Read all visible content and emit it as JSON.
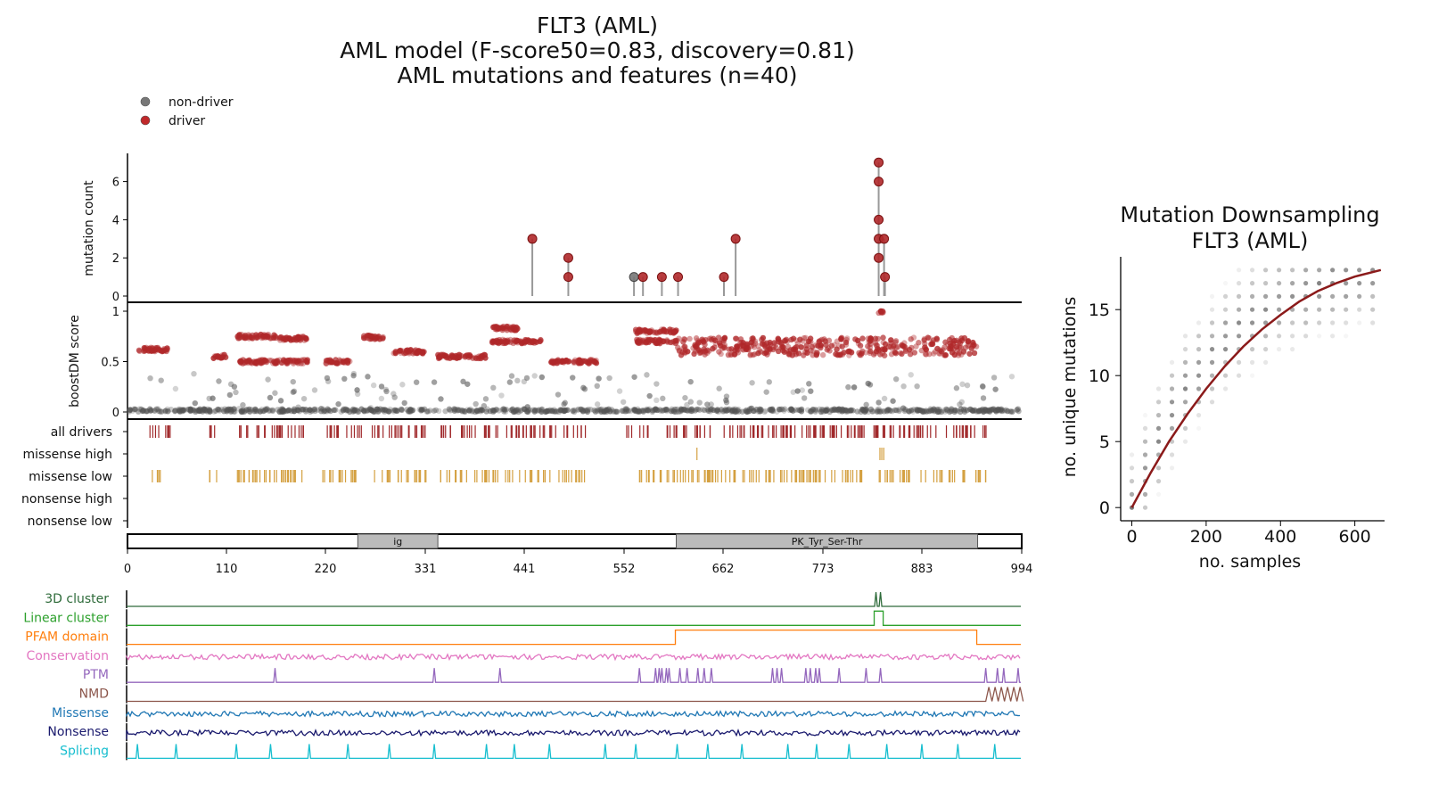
{
  "title": {
    "line1": "FLT3 (AML)",
    "line2": "AML model (F-score50=0.83, discovery=0.81)",
    "line3": "AML mutations and features (n=40)"
  },
  "legend": {
    "items": [
      {
        "label": "non-driver",
        "color": "#777777"
      },
      {
        "label": "driver",
        "color": "#c0282a"
      }
    ],
    "placement": "top-left"
  },
  "colors": {
    "driver": "#b0282a",
    "nondriver": "#555555",
    "missense_track": "#d4a040",
    "driver_track": "#a0282a",
    "downsampling_curve": "#8b1a1a"
  },
  "protein": {
    "length": 994,
    "x_ticks": [
      "0",
      "110",
      "220",
      "331",
      "441",
      "552",
      "662",
      "773",
      "883",
      "994"
    ],
    "domains": [
      {
        "label": "ig",
        "start": 256,
        "end": 345
      },
      {
        "label": "PK_Tyr_Ser-Thr",
        "start": 610,
        "end": 945
      }
    ]
  },
  "chart_data": [
    {
      "type": "scatter",
      "name": "needle-plot",
      "ylabel": "mutation count",
      "yticks": [
        "0",
        "2",
        "4",
        "6"
      ],
      "ylim": [
        0,
        7
      ],
      "mutations": [
        {
          "pos": 450,
          "count": 3,
          "driver": true
        },
        {
          "pos": 490,
          "count": 2,
          "driver": true
        },
        {
          "pos": 490,
          "count": 1,
          "driver": true
        },
        {
          "pos": 563,
          "count": 1,
          "driver": false
        },
        {
          "pos": 573,
          "count": 1,
          "driver": true
        },
        {
          "pos": 594,
          "count": 1,
          "driver": true
        },
        {
          "pos": 612,
          "count": 1,
          "driver": true
        },
        {
          "pos": 663,
          "count": 1,
          "driver": true
        },
        {
          "pos": 676,
          "count": 3,
          "driver": true
        },
        {
          "pos": 835,
          "count": 7,
          "driver": true
        },
        {
          "pos": 835,
          "count": 6,
          "driver": true
        },
        {
          "pos": 835,
          "count": 4,
          "driver": true
        },
        {
          "pos": 835,
          "count": 3,
          "driver": true
        },
        {
          "pos": 835,
          "count": 2,
          "driver": true
        },
        {
          "pos": 841,
          "count": 3,
          "driver": true
        },
        {
          "pos": 842,
          "count": 1,
          "driver": true
        }
      ]
    },
    {
      "type": "scatter",
      "name": "boostdm-scores",
      "ylabel": "boostDM score",
      "yticks": [
        "0",
        "0.5",
        "1"
      ],
      "ylim": [
        0,
        1
      ],
      "driver_bands": [
        {
          "start": 12,
          "end": 45,
          "y": 0.62
        },
        {
          "start": 95,
          "end": 110,
          "y": 0.55
        },
        {
          "start": 122,
          "end": 165,
          "y": 0.75
        },
        {
          "start": 165,
          "end": 200,
          "y": 0.73
        },
        {
          "start": 125,
          "end": 200,
          "y": 0.5
        },
        {
          "start": 220,
          "end": 248,
          "y": 0.5
        },
        {
          "start": 262,
          "end": 285,
          "y": 0.74
        },
        {
          "start": 295,
          "end": 330,
          "y": 0.6
        },
        {
          "start": 345,
          "end": 398,
          "y": 0.55
        },
        {
          "start": 405,
          "end": 435,
          "y": 0.83
        },
        {
          "start": 405,
          "end": 460,
          "y": 0.7
        },
        {
          "start": 470,
          "end": 522,
          "y": 0.5
        },
        {
          "start": 565,
          "end": 610,
          "y": 0.8
        },
        {
          "start": 565,
          "end": 610,
          "y": 0.7
        },
        {
          "start": 610,
          "end": 945,
          "y": 0.65
        },
        {
          "start": 835,
          "end": 842,
          "y": 1.0
        }
      ]
    },
    {
      "type": "table",
      "name": "driver-tracks",
      "rows": [
        "all drivers",
        "missense high",
        "missense low",
        "nonsense high",
        "nonsense low"
      ],
      "segments": {
        "all drivers": [
          [
            24,
            52
          ],
          [
            89,
            100
          ],
          [
            122,
            198
          ],
          [
            214,
            262
          ],
          [
            270,
            333
          ],
          [
            345,
            412
          ],
          [
            420,
            510
          ],
          [
            553,
            955
          ]
        ],
        "missense high": [
          [
            633,
            634
          ],
          [
            834,
            842
          ]
        ],
        "missense low": [
          [
            24,
            40
          ],
          [
            89,
            100
          ],
          [
            122,
            198
          ],
          [
            214,
            262
          ],
          [
            270,
            333
          ],
          [
            345,
            412
          ],
          [
            420,
            510
          ],
          [
            568,
            955
          ]
        ],
        "nonsense high": [],
        "nonsense low": []
      }
    },
    {
      "type": "line",
      "name": "feature-tracks",
      "tracks": [
        {
          "label": "3D cluster",
          "color": "#2e6b3a",
          "kind": "peaks",
          "peaks": [
            833,
            838
          ]
        },
        {
          "label": "Linear cluster",
          "color": "#2ca02c",
          "kind": "box",
          "start": 831,
          "end": 841
        },
        {
          "label": "PFAM domain",
          "color": "#ff7f0e",
          "kind": "box",
          "start": 610,
          "end": 945
        },
        {
          "label": "Conservation",
          "color": "#e377c2",
          "kind": "noise"
        },
        {
          "label": "PTM",
          "color": "#9467bd",
          "kind": "peaks",
          "peaks": [
            165,
            342,
            415,
            570,
            588,
            592,
            595,
            600,
            603,
            615,
            623,
            635,
            642,
            650,
            718,
            723,
            728,
            755,
            760,
            766,
            770,
            792,
            822,
            838,
            955,
            968,
            975,
            991
          ]
        },
        {
          "label": "NMD",
          "color": "#8c564b",
          "kind": "nmd",
          "start": 955
        },
        {
          "label": "Missense",
          "color": "#1f77b4",
          "kind": "noise"
        },
        {
          "label": "Nonsense",
          "color": "#1a1a6e",
          "kind": "noise"
        },
        {
          "label": "Splicing",
          "color": "#17becf",
          "kind": "peaks",
          "peaks": [
            12,
            55,
            122,
            160,
            203,
            246,
            292,
            342,
            400,
            431,
            470,
            532,
            566,
            612,
            646,
            684,
            735,
            767,
            803,
            845,
            884,
            924,
            965
          ]
        }
      ]
    },
    {
      "type": "scatter",
      "name": "mutation-downsampling",
      "title": "Mutation Downsampling",
      "subtitle": "FLT3 (AML)",
      "xlabel": "no. samples",
      "ylabel": "no. unique mutations",
      "xticks": [
        "0",
        "200",
        "400",
        "600"
      ],
      "yticks": [
        "0",
        "5",
        "10",
        "15"
      ],
      "xlim": [
        -30,
        680
      ],
      "ylim": [
        -1,
        19
      ],
      "curve": [
        [
          0,
          0
        ],
        [
          50,
          2.6
        ],
        [
          100,
          5.0
        ],
        [
          150,
          7.1
        ],
        [
          200,
          9.0
        ],
        [
          250,
          10.7
        ],
        [
          300,
          12.2
        ],
        [
          350,
          13.5
        ],
        [
          400,
          14.6
        ],
        [
          450,
          15.6
        ],
        [
          500,
          16.4
        ],
        [
          550,
          17.0
        ],
        [
          600,
          17.5
        ],
        [
          670,
          18.0
        ]
      ]
    }
  ]
}
